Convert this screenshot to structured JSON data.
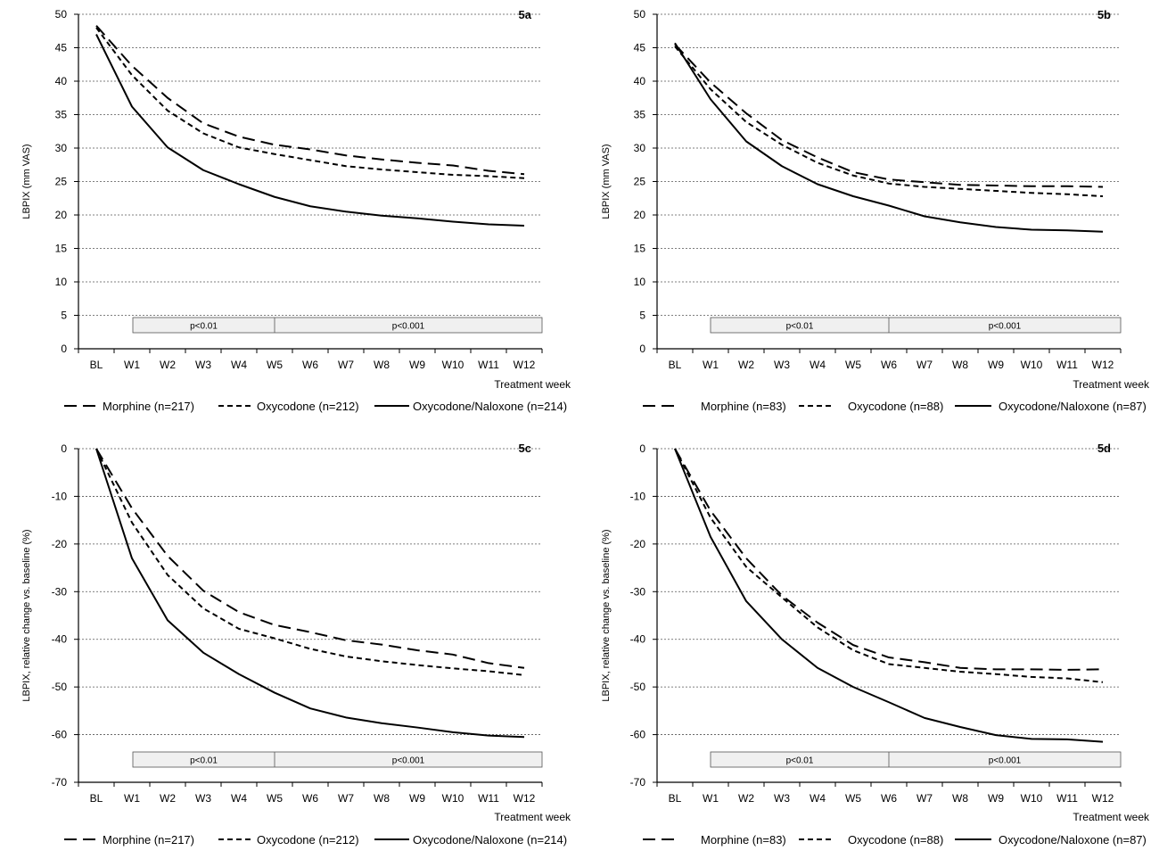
{
  "chart_data": [
    {
      "id": "5a",
      "type": "line",
      "panel_label": "5a",
      "ylabel": "LBPIX (mm VAS)",
      "xlabel": "Treatment week",
      "ylim": [
        0,
        50
      ],
      "yticks": [
        0,
        5,
        10,
        15,
        20,
        25,
        30,
        35,
        40,
        45,
        50
      ],
      "grid": true,
      "categories": [
        "BL",
        "W1",
        "W2",
        "W3",
        "W4",
        "W5",
        "W6",
        "W7",
        "W8",
        "W9",
        "W10",
        "W11",
        "W12"
      ],
      "series": [
        {
          "name": "Morphine (n=217)",
          "style": "longdash",
          "values": [
            48.3,
            42.3,
            37.5,
            33.7,
            31.7,
            30.5,
            29.8,
            28.9,
            28.3,
            27.8,
            27.4,
            26.6,
            26.1
          ]
        },
        {
          "name": "Oxycodone (n=212)",
          "style": "shortdash",
          "values": [
            48.0,
            40.9,
            35.6,
            32.2,
            30.1,
            29.1,
            28.2,
            27.3,
            26.8,
            26.4,
            26.0,
            25.8,
            25.5
          ]
        },
        {
          "name": "Oxycodone/Naloxone (n=214)",
          "style": "solid",
          "values": [
            47.0,
            36.2,
            30.1,
            26.7,
            24.6,
            22.7,
            21.3,
            20.5,
            19.9,
            19.5,
            19.0,
            18.6,
            18.4
          ]
        }
      ],
      "significance": [
        {
          "label": "p<0.01",
          "from": "W1",
          "to": "W5"
        },
        {
          "label": "p<0.001",
          "from": "W5",
          "to": "W12"
        }
      ],
      "legend_position": "bottom"
    },
    {
      "id": "5b",
      "type": "line",
      "panel_label": "5b",
      "ylabel": "LBPIX (mm VAS)",
      "xlabel": "Treatment week",
      "ylim": [
        0,
        50
      ],
      "yticks": [
        0,
        5,
        10,
        15,
        20,
        25,
        30,
        35,
        40,
        45,
        50
      ],
      "grid": true,
      "categories": [
        "BL",
        "W1",
        "W2",
        "W3",
        "W4",
        "W5",
        "W6",
        "W7",
        "W8",
        "W9",
        "W10",
        "W11",
        "W12"
      ],
      "series": [
        {
          "name": "Morphine (n=83)",
          "style": "longdash",
          "values": [
            45.5,
            39.8,
            35.2,
            31.2,
            28.6,
            26.4,
            25.3,
            24.9,
            24.5,
            24.4,
            24.3,
            24.3,
            24.2
          ]
        },
        {
          "name": "Oxycodone (n=88)",
          "style": "shortdash",
          "values": [
            45.2,
            38.8,
            33.9,
            30.5,
            27.8,
            25.9,
            24.7,
            24.2,
            23.9,
            23.6,
            23.3,
            23.1,
            22.8
          ]
        },
        {
          "name": "Oxycodone/Naloxone (n=87)",
          "style": "solid",
          "values": [
            45.7,
            37.3,
            31.0,
            27.3,
            24.6,
            22.8,
            21.4,
            19.8,
            18.9,
            18.2,
            17.8,
            17.7,
            17.5
          ]
        }
      ],
      "significance": [
        {
          "label": "p<0.01",
          "from": "W1",
          "to": "W6"
        },
        {
          "label": "p<0.001",
          "from": "W6",
          "to": "W12"
        }
      ],
      "legend_position": "bottom"
    },
    {
      "id": "5c",
      "type": "line",
      "panel_label": "5c",
      "ylabel": "LBPIX, relative change vs. baseline (%)",
      "xlabel": "Treatment week",
      "ylim": [
        -70,
        0
      ],
      "yticks": [
        -70,
        -60,
        -50,
        -40,
        -30,
        -20,
        -10,
        0
      ],
      "grid": true,
      "categories": [
        "BL",
        "W1",
        "W2",
        "W3",
        "W4",
        "W5",
        "W6",
        "W7",
        "W8",
        "W9",
        "W10",
        "W11",
        "W12"
      ],
      "series": [
        {
          "name": "Morphine (n=217)",
          "style": "longdash",
          "values": [
            0,
            -12.5,
            -22.5,
            -29.8,
            -34.3,
            -37.0,
            -38.5,
            -40.2,
            -41.1,
            -42.3,
            -43.2,
            -45.0,
            -46.0
          ]
        },
        {
          "name": "Oxycodone (n=212)",
          "style": "shortdash",
          "values": [
            0,
            -15.5,
            -26.5,
            -33.5,
            -37.8,
            -39.8,
            -42.0,
            -43.6,
            -44.6,
            -45.4,
            -46.1,
            -46.7,
            -47.5
          ]
        },
        {
          "name": "Oxycodone/Naloxone (n=214)",
          "style": "solid",
          "values": [
            0,
            -23.0,
            -36.0,
            -42.8,
            -47.3,
            -51.2,
            -54.5,
            -56.4,
            -57.6,
            -58.5,
            -59.5,
            -60.2,
            -60.5
          ]
        }
      ],
      "significance": [
        {
          "label": "p<0.01",
          "from": "W1",
          "to": "W5"
        },
        {
          "label": "p<0.001",
          "from": "W5",
          "to": "W12"
        }
      ],
      "legend_position": "bottom"
    },
    {
      "id": "5d",
      "type": "line",
      "panel_label": "5d",
      "ylabel": "LBPIX, relative change vs. baseline (%)",
      "xlabel": "Treatment week",
      "ylim": [
        -70,
        0
      ],
      "yticks": [
        -70,
        -60,
        -50,
        -40,
        -30,
        -20,
        -10,
        0
      ],
      "grid": true,
      "categories": [
        "BL",
        "W1",
        "W2",
        "W3",
        "W4",
        "W5",
        "W6",
        "W7",
        "W8",
        "W9",
        "W10",
        "W11",
        "W12"
      ],
      "series": [
        {
          "name": "Morphine (n=83)",
          "style": "longdash",
          "values": [
            0,
            -13.0,
            -23.0,
            -30.8,
            -36.5,
            -41.2,
            -43.8,
            -44.8,
            -46.0,
            -46.3,
            -46.3,
            -46.4,
            -46.3
          ]
        },
        {
          "name": "Oxycodone (n=88)",
          "style": "shortdash",
          "values": [
            0,
            -14.5,
            -24.8,
            -31.2,
            -37.5,
            -42.3,
            -45.2,
            -46.0,
            -46.8,
            -47.3,
            -47.9,
            -48.2,
            -49.0
          ]
        },
        {
          "name": "Oxycodone/Naloxone (n=87)",
          "style": "solid",
          "values": [
            0,
            -18.5,
            -32.0,
            -40.0,
            -46.0,
            -50.0,
            -53.2,
            -56.5,
            -58.4,
            -60.1,
            -60.9,
            -61.0,
            -61.5
          ]
        }
      ],
      "significance": [
        {
          "label": "p<0.01",
          "from": "W1",
          "to": "W6"
        },
        {
          "label": "p<0.001",
          "from": "W6",
          "to": "W12"
        }
      ],
      "legend_position": "bottom"
    }
  ]
}
